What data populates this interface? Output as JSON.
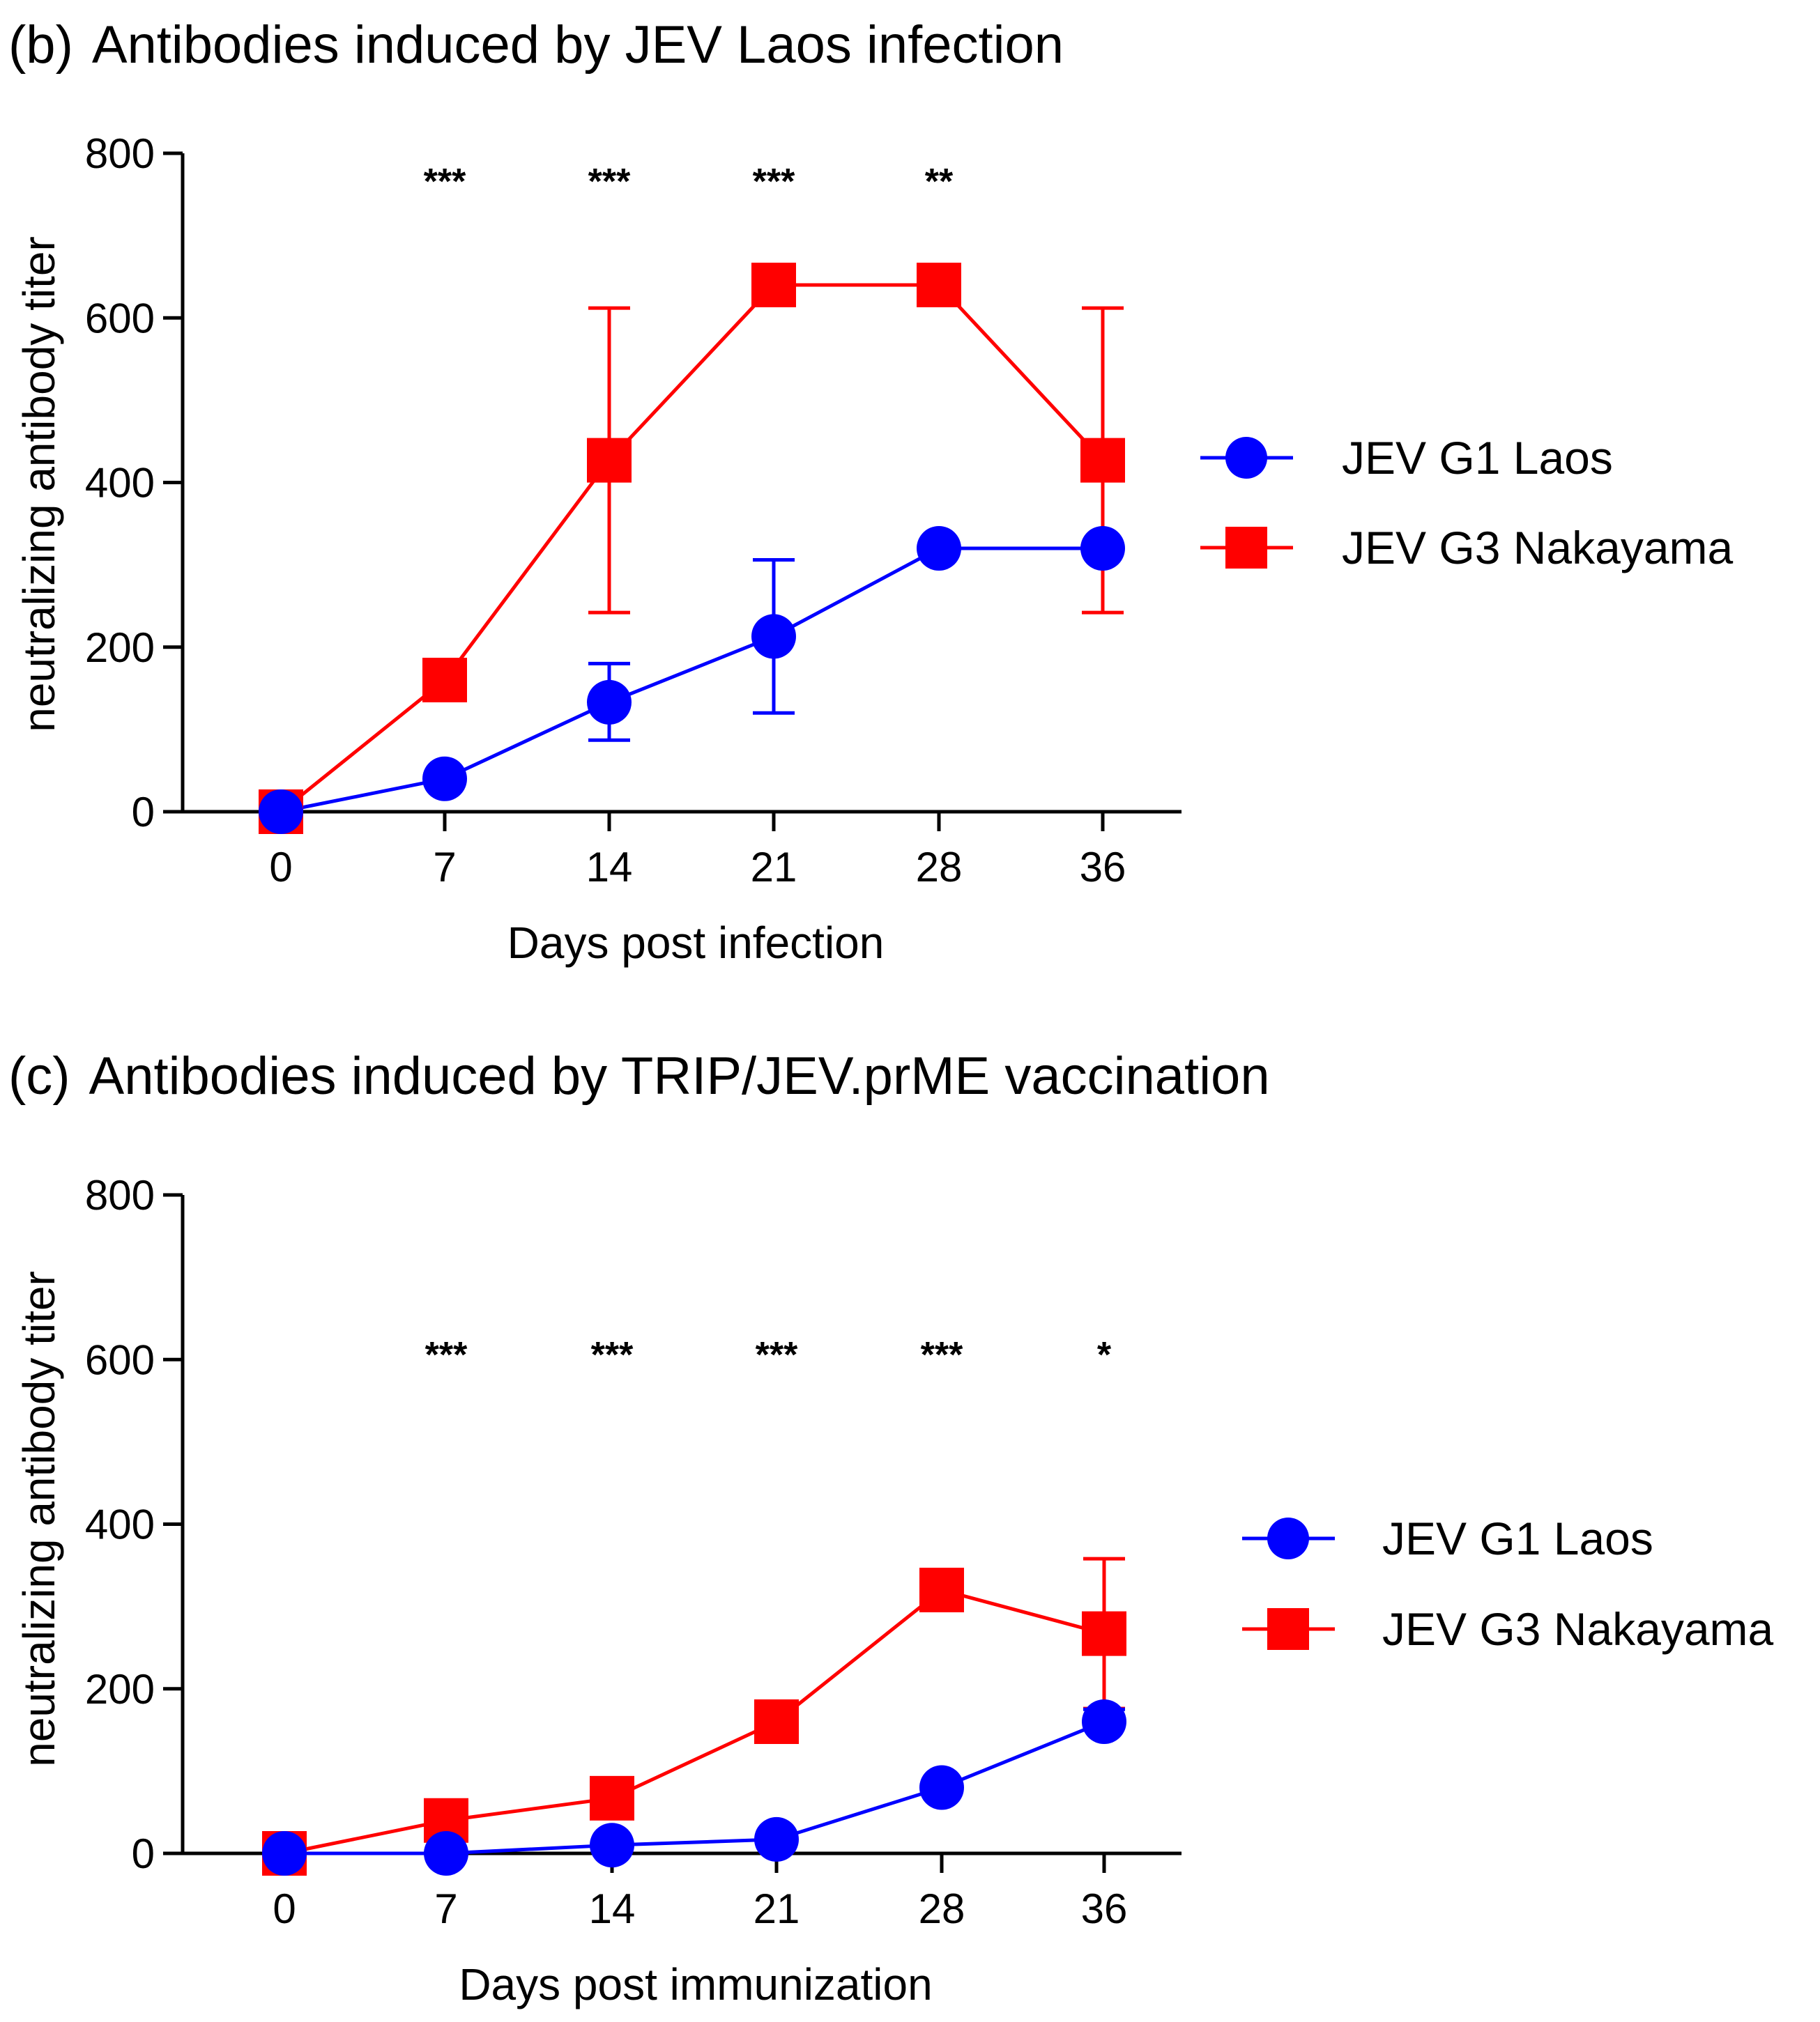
{
  "colors": {
    "g1": "#0000ff",
    "g3": "#ff0000"
  },
  "chart_data": [
    {
      "type": "line",
      "panel_label": "(b)",
      "title": "Antibodies induced by JEV Laos infection",
      "xlabel": "Days post infection",
      "ylabel": "neutralizing antibody titer",
      "ylim": [
        0,
        800
      ],
      "yticks": [
        "0",
        "200",
        "400",
        "600",
        "800"
      ],
      "x": [
        0,
        7,
        14,
        21,
        28,
        36
      ],
      "xticks": [
        "0",
        "7",
        "14",
        "21",
        "28",
        "36"
      ],
      "series": [
        {
          "name": "JEV G1 Laos",
          "marker": "circle",
          "color_key": "g1",
          "values": [
            0,
            40,
            133,
            213,
            320,
            320
          ],
          "err_high": [
            0,
            0,
            180,
            306,
            0,
            0
          ],
          "err_low": [
            0,
            0,
            87,
            120,
            0,
            0
          ]
        },
        {
          "name": "JEV G3 Nakayama",
          "marker": "square",
          "color_key": "g3",
          "values": [
            0,
            160,
            427,
            640,
            640,
            427
          ],
          "err_high": [
            0,
            0,
            612,
            0,
            0,
            612
          ],
          "err_low": [
            0,
            0,
            242,
            0,
            0,
            242
          ]
        }
      ],
      "significance": [
        {
          "x": 7,
          "label": "***"
        },
        {
          "x": 14,
          "label": "***"
        },
        {
          "x": 21,
          "label": "***"
        },
        {
          "x": 28,
          "label": "**"
        }
      ]
    },
    {
      "type": "line",
      "panel_label": "(c)",
      "title": "Antibodies induced by TRIP/JEV.prME vaccination",
      "xlabel": "Days post immunization",
      "ylabel": "neutralizing antibody titer",
      "ylim": [
        0,
        800
      ],
      "yticks": [
        "0",
        "200",
        "400",
        "600",
        "800"
      ],
      "x": [
        0,
        7,
        14,
        21,
        28,
        36
      ],
      "xticks": [
        "0",
        "7",
        "14",
        "21",
        "28",
        "36"
      ],
      "series": [
        {
          "name": "JEV G1 Laos",
          "marker": "circle",
          "color_key": "g1",
          "values": [
            0,
            0,
            10,
            17,
            80,
            160
          ],
          "err_high": [
            0,
            0,
            0,
            0,
            0,
            175
          ],
          "err_low": [
            0,
            0,
            0,
            0,
            0,
            0
          ]
        },
        {
          "name": "JEV G3 Nakayama",
          "marker": "square",
          "color_key": "g3",
          "values": [
            0,
            40,
            67,
            160,
            320,
            267
          ],
          "err_high": [
            0,
            0,
            0,
            0,
            0,
            358
          ],
          "err_low": [
            0,
            0,
            0,
            0,
            0,
            176
          ]
        }
      ],
      "significance": [
        {
          "x": 7,
          "label": "***"
        },
        {
          "x": 14,
          "label": "***"
        },
        {
          "x": 21,
          "label": "***"
        },
        {
          "x": 28,
          "label": "***"
        },
        {
          "x": 36,
          "label": "*"
        }
      ]
    }
  ]
}
